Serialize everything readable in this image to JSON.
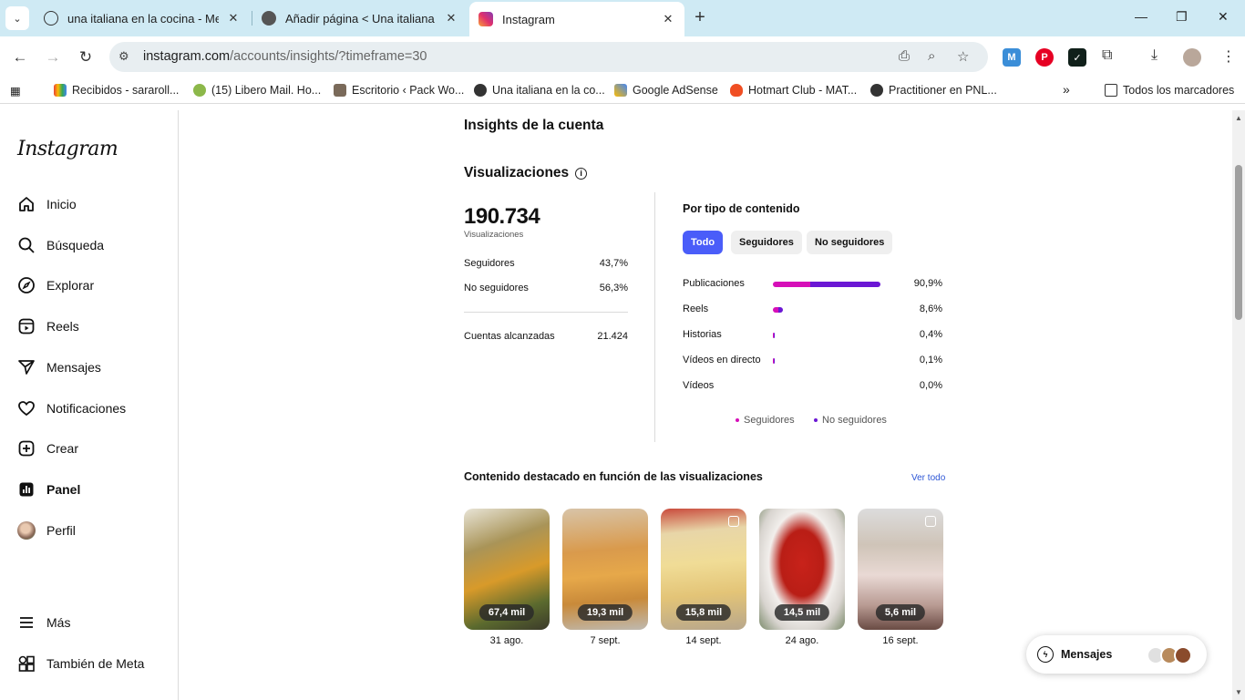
{
  "browser": {
    "tabs": [
      {
        "title": "una italiana en la cocina - Mejor",
        "close": "✕"
      },
      {
        "title": "Añadir página < Una italiana en",
        "close": "✕"
      },
      {
        "title": "Instagram",
        "close": "✕"
      }
    ],
    "new_tab": "+",
    "url_host": "instagram.com",
    "url_path": "/accounts/insights/?timeframe=30",
    "bookmarks": [
      "Recibidos - sararoll...",
      "(15) Libero Mail. Ho...",
      "Escritorio ‹ Pack Wo...",
      "Una italiana en la co...",
      "Google AdSense",
      "Hotmart Club - MAT...",
      "Practitioner en PNL..."
    ],
    "all_bookmarks": "Todos los marcadores",
    "bookmarks_overflow": "»"
  },
  "sidebar": {
    "logo": "Instagram",
    "items": [
      {
        "label": "Inicio",
        "icon": "home-icon"
      },
      {
        "label": "Búsqueda",
        "icon": "search-icon"
      },
      {
        "label": "Explorar",
        "icon": "compass-icon"
      },
      {
        "label": "Reels",
        "icon": "reels-icon"
      },
      {
        "label": "Mensajes",
        "icon": "send-icon"
      },
      {
        "label": "Notificaciones",
        "icon": "heart-icon"
      },
      {
        "label": "Crear",
        "icon": "plus-square-icon"
      },
      {
        "label": "Panel",
        "icon": "dashboard-icon"
      },
      {
        "label": "Perfil",
        "icon": "avatar-icon"
      }
    ],
    "more": "Más",
    "meta": "También de Meta"
  },
  "insights": {
    "title": "Insights de la cuenta",
    "section": "Visualizaciones",
    "total": "190.734",
    "total_label": "Visualizaciones",
    "followers_label": "Seguidores",
    "followers_pct": "43,7%",
    "nonfollowers_label": "No seguidores",
    "nonfollowers_pct": "56,3%",
    "reached_label": "Cuentas alcanzadas",
    "reached_value": "21.424",
    "by_type_title": "Por tipo de contenido",
    "filters": [
      "Todo",
      "Seguidores",
      "No seguidores"
    ],
    "content_types": [
      {
        "label": "Publicaciones",
        "pct": "90,9%",
        "followers": 0.35,
        "nonfollowers": 0.65,
        "share": 0.909
      },
      {
        "label": "Reels",
        "pct": "8,6%",
        "followers": 0.5,
        "nonfollowers": 0.5,
        "share": 0.086
      },
      {
        "label": "Historias",
        "pct": "0,4%",
        "followers": 0.5,
        "nonfollowers": 0.5,
        "share": 0.004
      },
      {
        "label": "Vídeos en directo",
        "pct": "0,1%",
        "followers": 0.5,
        "nonfollowers": 0.5,
        "share": 0.001
      },
      {
        "label": "Vídeos",
        "pct": "0,0%",
        "followers": 0,
        "nonfollowers": 0,
        "share": 0
      }
    ],
    "legend_followers": "Seguidores",
    "legend_nonfollowers": "No seguidores",
    "colors": {
      "followers": "#d60fb8",
      "nonfollowers": "#6b17d4",
      "accent": "#4a5df9"
    },
    "top_title": "Contenido destacado en función de las visualizaciones",
    "see_all": "Ver todo",
    "top_posts": [
      {
        "views": "67,4 mil",
        "date": "31 ago."
      },
      {
        "views": "19,3 mil",
        "date": "7 sept."
      },
      {
        "views": "15,8 mil",
        "date": "14 sept."
      },
      {
        "views": "14,5 mil",
        "date": "24 ago."
      },
      {
        "views": "5,6 mil",
        "date": "16 sept."
      }
    ]
  },
  "messages_pill": "Mensajes"
}
